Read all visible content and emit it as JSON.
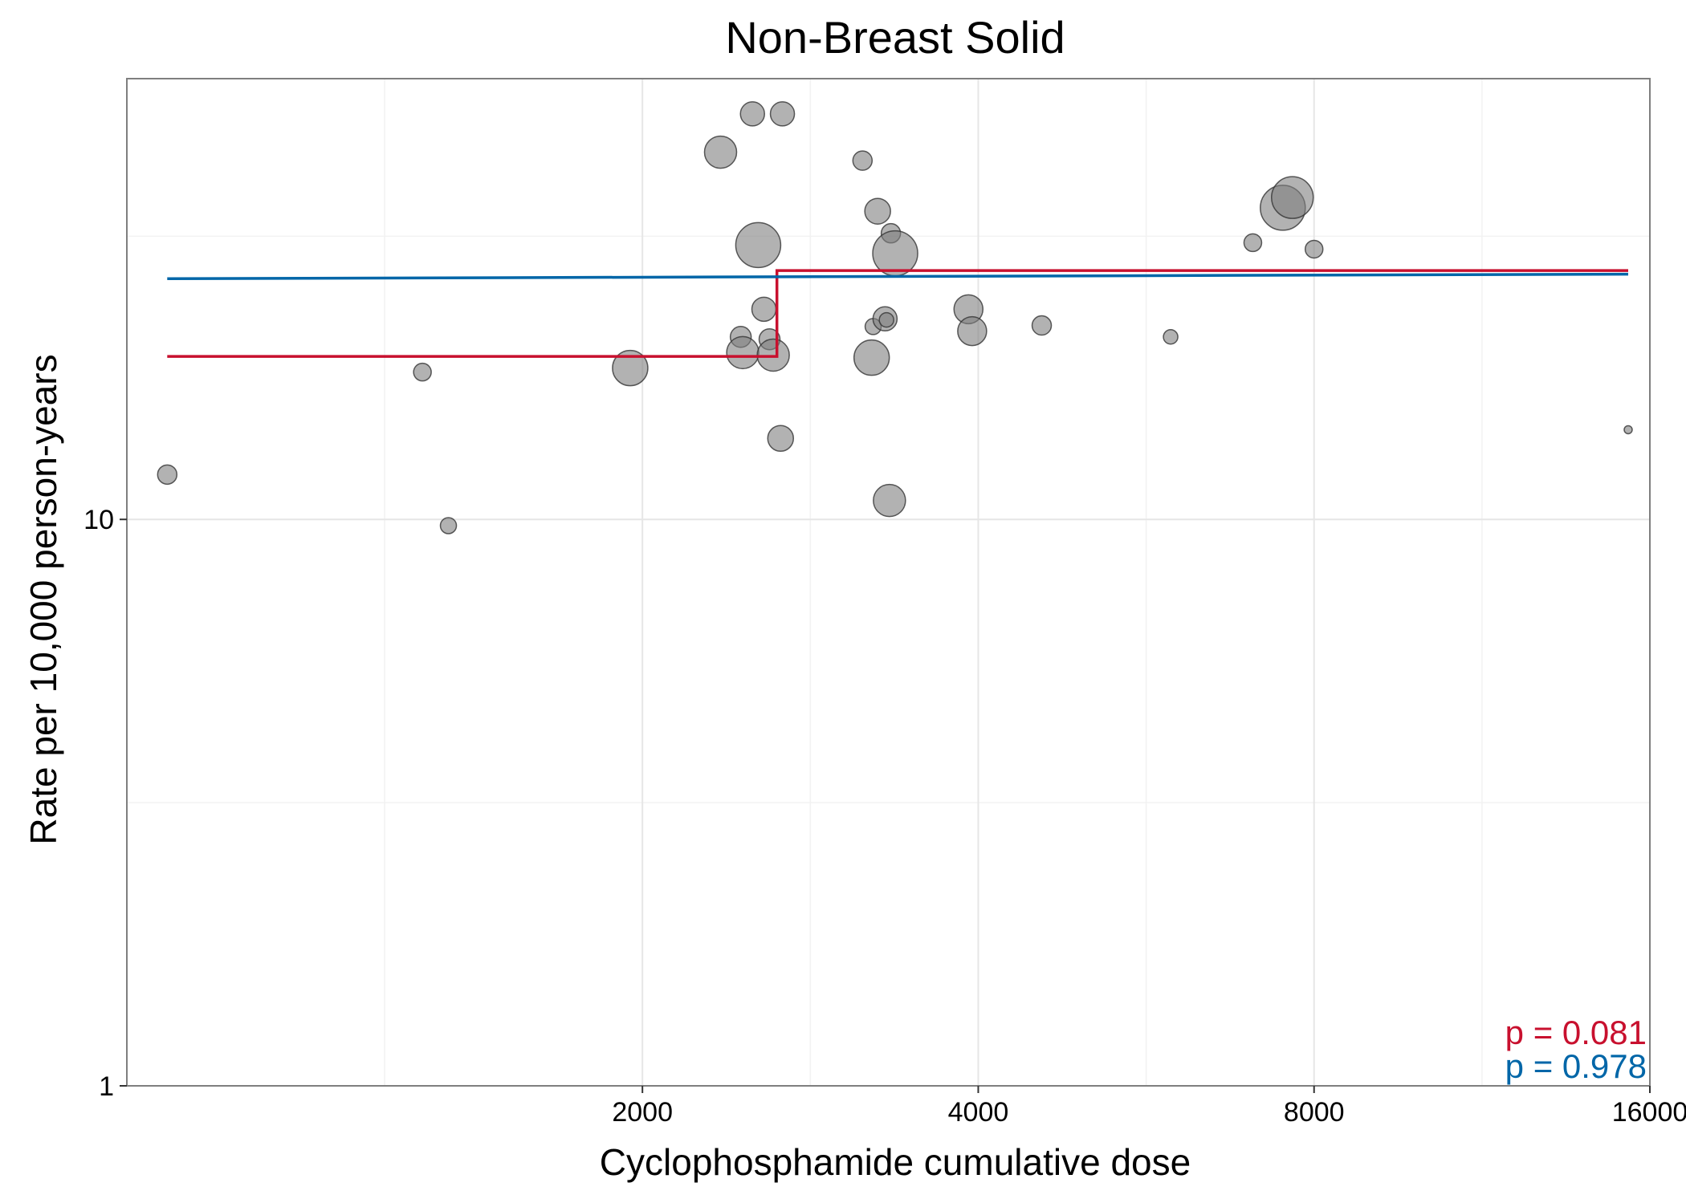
{
  "chart_data": {
    "type": "scatter",
    "title": "Non-Breast Solid",
    "xlabel": "Cyclophosphamide cumulative dose",
    "ylabel": "Rate per 10,000 person-years",
    "x_scale": "log2",
    "y_scale": "log10",
    "xlim": [
      690,
      16000
    ],
    "ylim": [
      1,
      60
    ],
    "x_ticks": [
      2000,
      4000,
      8000,
      16000
    ],
    "x_tick_labels": [
      "2000",
      "4000",
      "8000",
      "16000"
    ],
    "y_ticks": [
      1,
      10
    ],
    "y_tick_labels": [
      "1",
      "10"
    ],
    "grid": true,
    "points": [
      {
        "x": 750,
        "y": 12.0,
        "size": 12
      },
      {
        "x": 1270,
        "y": 18.2,
        "size": 11
      },
      {
        "x": 1340,
        "y": 9.75,
        "size": 10
      },
      {
        "x": 1950,
        "y": 18.5,
        "size": 22
      },
      {
        "x": 2350,
        "y": 44.5,
        "size": 20
      },
      {
        "x": 2450,
        "y": 21.0,
        "size": 13
      },
      {
        "x": 2460,
        "y": 19.7,
        "size": 20
      },
      {
        "x": 2510,
        "y": 52.0,
        "size": 15
      },
      {
        "x": 2540,
        "y": 30.5,
        "size": 28
      },
      {
        "x": 2570,
        "y": 23.5,
        "size": 15
      },
      {
        "x": 2600,
        "y": 20.8,
        "size": 13
      },
      {
        "x": 2620,
        "y": 19.5,
        "size": 20
      },
      {
        "x": 2660,
        "y": 13.9,
        "size": 16
      },
      {
        "x": 2670,
        "y": 52.0,
        "size": 15
      },
      {
        "x": 3150,
        "y": 43.0,
        "size": 12
      },
      {
        "x": 3210,
        "y": 19.3,
        "size": 22
      },
      {
        "x": 3220,
        "y": 21.9,
        "size": 10
      },
      {
        "x": 3250,
        "y": 35.0,
        "size": 16
      },
      {
        "x": 3300,
        "y": 22.6,
        "size": 15
      },
      {
        "x": 3310,
        "y": 22.5,
        "size": 9
      },
      {
        "x": 3330,
        "y": 10.8,
        "size": 20
      },
      {
        "x": 3340,
        "y": 32.0,
        "size": 12
      },
      {
        "x": 3370,
        "y": 29.5,
        "size": 28
      },
      {
        "x": 3920,
        "y": 23.5,
        "size": 18
      },
      {
        "x": 3950,
        "y": 21.5,
        "size": 18
      },
      {
        "x": 4560,
        "y": 22.0,
        "size": 12
      },
      {
        "x": 5950,
        "y": 21.0,
        "size": 9
      },
      {
        "x": 7050,
        "y": 30.8,
        "size": 11
      },
      {
        "x": 7500,
        "y": 35.5,
        "size": 28
      },
      {
        "x": 7650,
        "y": 37.0,
        "size": 26
      },
      {
        "x": 8000,
        "y": 30.0,
        "size": 11
      },
      {
        "x": 15300,
        "y": 14.4,
        "size": 5
      }
    ],
    "series": [
      {
        "type": "step",
        "color": "#C8102E",
        "x": [
          750,
          2640,
          2640,
          15300
        ],
        "y": [
          19.4,
          19.4,
          27.5,
          27.5
        ]
      },
      {
        "type": "line",
        "color": "#0066A8",
        "x": [
          750,
          15300
        ],
        "y": [
          26.6,
          27.1
        ]
      }
    ],
    "annotations": [
      {
        "text": "p = 0.081",
        "color": "#C8102E",
        "position": "bottom-right"
      },
      {
        "text": "p = 0.978",
        "color": "#0066A8",
        "position": "bottom-right"
      }
    ]
  }
}
